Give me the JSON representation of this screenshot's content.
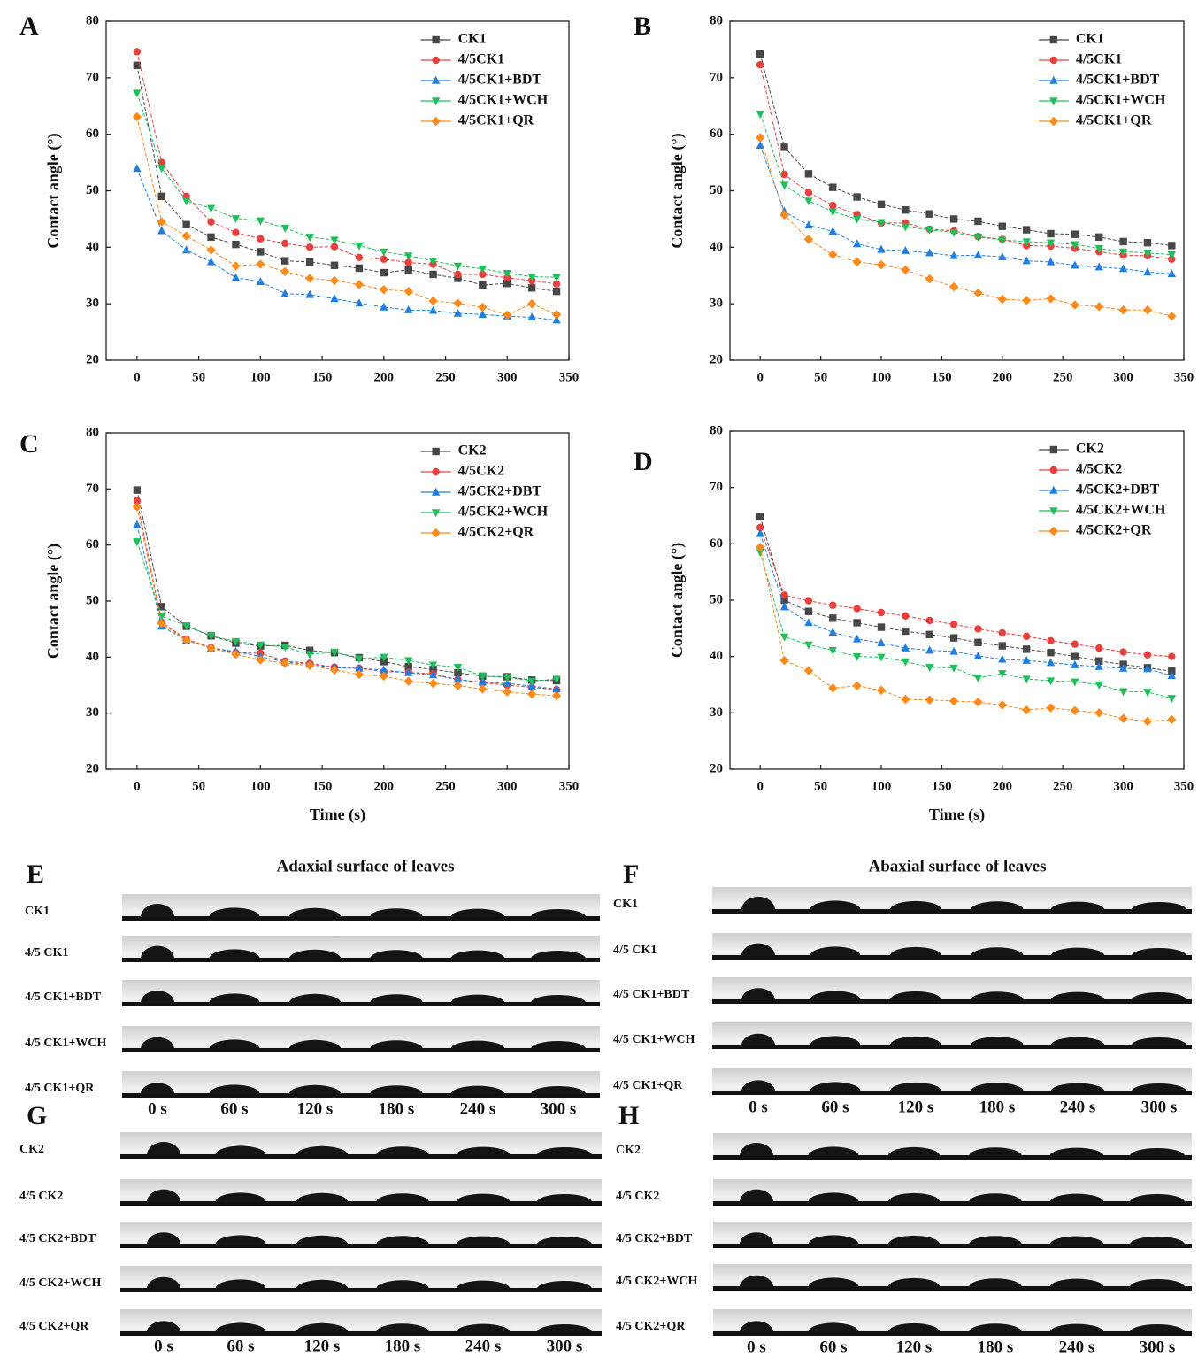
{
  "chart_data": [
    {
      "type": "line",
      "label": "A",
      "ylabel": "Contact angle (°)",
      "xlim": [
        -25,
        350
      ],
      "ylim": [
        20,
        80
      ],
      "xticks": [
        0,
        50,
        100,
        150,
        200,
        250,
        300,
        350
      ],
      "yticks": [
        20,
        30,
        40,
        50,
        60,
        70,
        80
      ],
      "legend": "upper right",
      "x": [
        0,
        20,
        40,
        60,
        80,
        100,
        120,
        140,
        160,
        180,
        200,
        220,
        240,
        260,
        280,
        300,
        320,
        340
      ],
      "series": [
        {
          "name": "CK1",
          "color": "#474747",
          "marker": "square",
          "values": [
            72.2,
            49,
            44,
            41.8,
            40.5,
            39.2,
            37.6,
            37.4,
            36.8,
            36.3,
            35.5,
            36,
            35.2,
            34.5,
            33.3,
            33.6,
            32.8,
            32.2
          ]
        },
        {
          "name": "4/5CK1",
          "color": "#e8403c",
          "marker": "circle",
          "values": [
            74.6,
            55,
            49,
            44.5,
            42.6,
            41.5,
            40.7,
            40,
            40.1,
            38.2,
            37.9,
            37.3,
            37,
            35.2,
            35.2,
            34.6,
            34.1,
            33.5
          ]
        },
        {
          "name": "4/5CK1+BDT",
          "color": "#1f7fe0",
          "marker": "triangle-up",
          "values": [
            53.9,
            42.9,
            39.5,
            37.4,
            34.6,
            33.9,
            31.8,
            31.6,
            30.9,
            30.1,
            29.4,
            28.9,
            28.8,
            28.3,
            28.1,
            27.8,
            27.6,
            27.1
          ]
        },
        {
          "name": "4/5CK1+WCH",
          "color": "#1fbf5c",
          "marker": "triangle-down",
          "values": [
            67.3,
            54,
            48.2,
            46.9,
            45.1,
            44.7,
            43.4,
            41.8,
            41.3,
            40.3,
            39.2,
            38.5,
            37.6,
            36.7,
            36.2,
            35.4,
            34.8,
            34.7
          ]
        },
        {
          "name": "4/5CK1+QR",
          "color": "#ff8a1c",
          "marker": "diamond",
          "values": [
            63.1,
            44.5,
            42,
            39.5,
            36.7,
            37,
            35.7,
            34.5,
            34.1,
            33.4,
            32.5,
            32.2,
            30.5,
            30.1,
            29.4,
            28,
            30,
            28.1
          ]
        }
      ]
    },
    {
      "type": "line",
      "label": "B",
      "ylabel": "Contact angle (°)",
      "xlim": [
        -25,
        350
      ],
      "ylim": [
        20,
        80
      ],
      "xticks": [
        0,
        50,
        100,
        150,
        200,
        250,
        300,
        350
      ],
      "yticks": [
        20,
        30,
        40,
        50,
        60,
        70,
        80
      ],
      "legend": "upper right",
      "x": [
        0,
        20,
        40,
        60,
        80,
        100,
        120,
        140,
        160,
        180,
        200,
        220,
        240,
        260,
        280,
        300,
        320,
        340
      ],
      "series": [
        {
          "name": "CK1",
          "color": "#474747",
          "marker": "square",
          "values": [
            74.2,
            57.7,
            53,
            50.6,
            48.9,
            47.6,
            46.6,
            45.9,
            45,
            44.6,
            43.7,
            43.1,
            42.4,
            42.3,
            41.8,
            41,
            40.8,
            40.3
          ]
        },
        {
          "name": "4/5CK1",
          "color": "#e8403c",
          "marker": "circle",
          "values": [
            72.3,
            52.9,
            49.7,
            47.4,
            45.8,
            44.3,
            44.3,
            43.2,
            42.9,
            41.9,
            41.4,
            40.3,
            40.2,
            39.8,
            39.2,
            38.6,
            38.5,
            37.9
          ]
        },
        {
          "name": "4/5CK1+BDT",
          "color": "#1f7fe0",
          "marker": "triangle-up",
          "values": [
            58,
            46.3,
            43.9,
            42.8,
            40.6,
            39.6,
            39.4,
            39,
            38.5,
            38.6,
            38.3,
            37.6,
            37.4,
            36.8,
            36.5,
            36.2,
            35.6,
            35.3
          ]
        },
        {
          "name": "4/5CK1+WCH",
          "color": "#1fbf5c",
          "marker": "triangle-down",
          "values": [
            63.6,
            51,
            48.2,
            46.3,
            45,
            44.4,
            43.6,
            43.1,
            42.6,
            41.8,
            41.3,
            41,
            40.8,
            40.5,
            39.8,
            39.2,
            39,
            38.7
          ]
        },
        {
          "name": "4/5CK1+QR",
          "color": "#ff8a1c",
          "marker": "diamond",
          "values": [
            59.4,
            45.7,
            41.4,
            38.7,
            37.4,
            36.9,
            36,
            34.4,
            33,
            31.9,
            30.8,
            30.6,
            30.9,
            29.8,
            29.5,
            28.9,
            28.9,
            27.8
          ]
        }
      ]
    },
    {
      "type": "line",
      "label": "C",
      "ylabel": "Contact angle (°)",
      "xlabel": "Time (s)",
      "xlim": [
        -25,
        350
      ],
      "ylim": [
        20,
        80
      ],
      "xticks": [
        0,
        50,
        100,
        150,
        200,
        250,
        300,
        350
      ],
      "yticks": [
        20,
        30,
        40,
        50,
        60,
        70,
        80
      ],
      "legend": "upper right",
      "x": [
        0,
        20,
        40,
        60,
        80,
        100,
        120,
        140,
        160,
        180,
        200,
        220,
        240,
        260,
        280,
        300,
        320,
        340
      ],
      "series": [
        {
          "name": "CK2",
          "color": "#474747",
          "marker": "square",
          "values": [
            69.8,
            49,
            45.5,
            43.8,
            42.5,
            42,
            42.1,
            41.2,
            40.8,
            39.9,
            39.2,
            38.3,
            37.8,
            37.2,
            36.6,
            36.5,
            35.9,
            35.8
          ]
        },
        {
          "name": "4/5CK2",
          "color": "#e8403c",
          "marker": "circle",
          "values": [
            67.9,
            46.2,
            43.2,
            41.7,
            40.8,
            40.7,
            39.3,
            38.9,
            38.2,
            38,
            37.4,
            37.3,
            37,
            36,
            35.4,
            35,
            34.6,
            34.2
          ]
        },
        {
          "name": "4/5CK2+DBT",
          "color": "#1f7fe0",
          "marker": "triangle-up",
          "values": [
            63.6,
            45.5,
            43,
            41.6,
            41,
            40.1,
            39.1,
            38.7,
            38.1,
            38,
            37.7,
            37.2,
            36.8,
            36,
            35.5,
            35.3,
            34.8,
            34.3
          ]
        },
        {
          "name": "4/5CK2+WCH",
          "color": "#1fbf5c",
          "marker": "triangle-down",
          "values": [
            60.6,
            47.3,
            45.6,
            43.8,
            42.8,
            42.2,
            41.8,
            40.5,
            40.9,
            39.7,
            40,
            39.4,
            38.6,
            38.2,
            36.6,
            36.4,
            35.7,
            36.1
          ]
        },
        {
          "name": "4/5CK2+QR",
          "color": "#ff8a1c",
          "marker": "diamond",
          "values": [
            66.8,
            46,
            43,
            41.6,
            40.5,
            39.5,
            38.9,
            38.5,
            37.7,
            36.9,
            36.6,
            35.7,
            35.3,
            34.9,
            34.3,
            33.8,
            33.4,
            33.1
          ]
        }
      ]
    },
    {
      "type": "line",
      "label": "D",
      "ylabel": "Contact angle (°)",
      "xlabel": "Time (s)",
      "xlim": [
        -25,
        350
      ],
      "ylim": [
        20,
        80
      ],
      "xticks": [
        0,
        50,
        100,
        150,
        200,
        250,
        300,
        350
      ],
      "yticks": [
        20,
        30,
        40,
        50,
        60,
        70,
        80
      ],
      "legend": "upper right",
      "x": [
        0,
        20,
        40,
        60,
        80,
        100,
        120,
        140,
        160,
        180,
        200,
        220,
        240,
        260,
        280,
        300,
        320,
        340
      ],
      "series": [
        {
          "name": "CK2",
          "color": "#474747",
          "marker": "square",
          "values": [
            64.8,
            50,
            48,
            46.8,
            46,
            45.2,
            44.5,
            43.9,
            43.3,
            42.5,
            41.9,
            41.3,
            40.7,
            40,
            39.2,
            38.6,
            38,
            37.4
          ]
        },
        {
          "name": "4/5CK2",
          "color": "#e8403c",
          "marker": "circle",
          "values": [
            62.9,
            50.9,
            49.9,
            49.1,
            48.5,
            47.8,
            47.2,
            46.4,
            45.7,
            44.9,
            44.2,
            43.6,
            42.8,
            42.2,
            41.5,
            40.8,
            40.3,
            40
          ]
        },
        {
          "name": "4/5CK2+DBT",
          "color": "#1f7fe0",
          "marker": "triangle-up",
          "values": [
            61.8,
            48.8,
            46,
            44.3,
            43.1,
            42.4,
            41.5,
            41.1,
            40.9,
            40.1,
            39.5,
            39.3,
            38.9,
            38.5,
            38.2,
            37.9,
            37.8,
            36.6
          ]
        },
        {
          "name": "4/5CK2+WCH",
          "color": "#1fbf5c",
          "marker": "triangle-down",
          "values": [
            58.5,
            43.5,
            42.1,
            41.1,
            40,
            39.9,
            39.1,
            38.1,
            38,
            36.2,
            37,
            36,
            35.7,
            35.5,
            35,
            33.8,
            33.7,
            32.6
          ]
        },
        {
          "name": "4/5CK2+QR",
          "color": "#ff8a1c",
          "marker": "diamond",
          "values": [
            59.4,
            39.3,
            37.5,
            34.4,
            34.8,
            34,
            32.4,
            32.3,
            32.1,
            31.9,
            31.4,
            30.5,
            30.9,
            30.4,
            30,
            29,
            28.5,
            28.8
          ]
        }
      ]
    }
  ],
  "image_panels": [
    {
      "label": "E",
      "title": "Adaxial surface of leaves",
      "rows": [
        "CK1",
        "4/5 CK1",
        "4/5 CK1+BDT",
        "4/5 CK1+WCH",
        "4/5 CK1+QR"
      ],
      "times": [
        "0 s",
        "60 s",
        "120 s",
        "180 s",
        "240 s",
        "300 s"
      ]
    },
    {
      "label": "F",
      "title": "Abaxial surface of leaves",
      "rows": [
        "CK1",
        "4/5 CK1",
        "4/5 CK1+BDT",
        "4/5 CK1+WCH",
        "4/5 CK1+QR"
      ],
      "times": [
        "0 s",
        "60 s",
        "120 s",
        "180 s",
        "240 s",
        "300 s"
      ]
    },
    {
      "label": "G",
      "rows": [
        "CK2",
        "4/5 CK2",
        "4/5 CK2+BDT",
        "4/5 CK2+WCH",
        "4/5 CK2+QR"
      ],
      "times": [
        "0 s",
        "60 s",
        "120 s",
        "180 s",
        "240 s",
        "300 s"
      ]
    },
    {
      "label": "H",
      "rows": [
        "CK2",
        "4/5 CK2",
        "4/5 CK2+BDT",
        "4/5 CK2+WCH",
        "4/5 CK2+QR"
      ],
      "times": [
        "0 s",
        "60 s",
        "120 s",
        "180 s",
        "240 s",
        "300 s"
      ]
    }
  ]
}
